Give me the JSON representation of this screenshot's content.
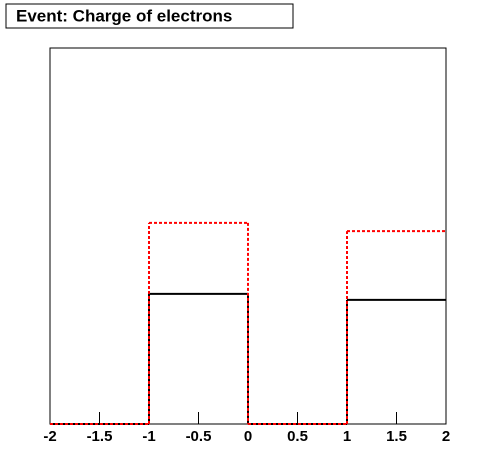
{
  "chart_data": {
    "type": "histogram",
    "title": "Event: Charge of electrons",
    "bins": [
      -2,
      -1,
      0,
      1,
      2
    ],
    "series": [
      {
        "color": "#000000",
        "style": "solid",
        "values": [
          0,
          0.346,
          0,
          0.33
        ]
      },
      {
        "color": "#ff0000",
        "style": "dashed",
        "values": [
          0,
          0.535,
          0,
          0.513
        ]
      }
    ],
    "xlim": [
      -2,
      2
    ],
    "xticks": [
      -2,
      -1.5,
      -1,
      -0.5,
      0,
      0.5,
      1,
      1.5,
      2
    ],
    "ylim": [
      0,
      1
    ]
  }
}
